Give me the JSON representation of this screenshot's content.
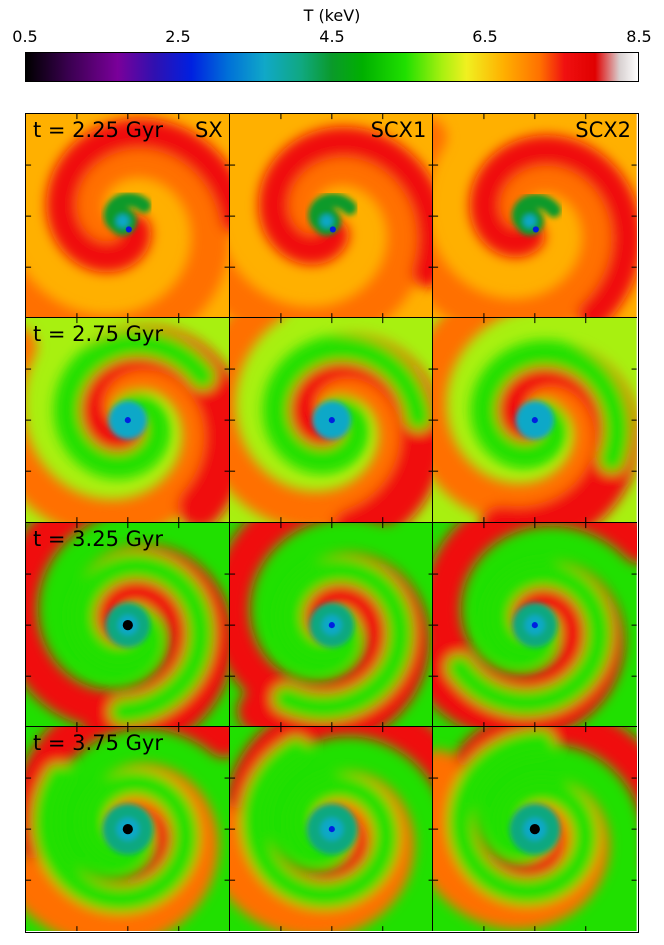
{
  "colorbar": {
    "title": "T (keV)",
    "ticks": [
      "0.5",
      "2.5",
      "4.5",
      "6.5",
      "8.5"
    ],
    "tick_values": [
      0.5,
      2.5,
      4.5,
      6.5,
      8.5
    ],
    "range": [
      0.5,
      8.5
    ],
    "colormap": [
      {
        "t": 0.0,
        "color": "#000000"
      },
      {
        "t": 0.07,
        "color": "#3a0050"
      },
      {
        "t": 0.15,
        "color": "#7a009a"
      },
      {
        "t": 0.21,
        "color": "#3010b0"
      },
      {
        "t": 0.27,
        "color": "#0020e0"
      },
      {
        "t": 0.33,
        "color": "#0070d8"
      },
      {
        "t": 0.39,
        "color": "#10a8c8"
      },
      {
        "t": 0.45,
        "color": "#10a880"
      },
      {
        "t": 0.5,
        "color": "#0a9a2a"
      },
      {
        "t": 0.55,
        "color": "#00b000"
      },
      {
        "t": 0.62,
        "color": "#20e000"
      },
      {
        "t": 0.68,
        "color": "#a8f010"
      },
      {
        "t": 0.72,
        "color": "#f0f020"
      },
      {
        "t": 0.78,
        "color": "#ffb000"
      },
      {
        "t": 0.84,
        "color": "#ff7000"
      },
      {
        "t": 0.88,
        "color": "#f01010"
      },
      {
        "t": 0.93,
        "color": "#e00000"
      },
      {
        "t": 0.97,
        "color": "#d8d0d0"
      },
      {
        "t": 1.0,
        "color": "#ffffff"
      }
    ]
  },
  "columns": [
    "SX",
    "SCX1",
    "SCX2"
  ],
  "rows": [
    "t = 2.25 Gyr",
    "t = 2.75 Gyr",
    "t = 3.25 Gyr",
    "t = 3.75 Gyr"
  ],
  "panel_style": {
    "background": [
      "#ffb000",
      "#a8f010",
      "#20e000",
      "#20e000"
    ],
    "outer": [
      "#ff7000",
      "#ff7000",
      "#f01010",
      "#f01010"
    ],
    "arm": [
      "#f01010",
      "#f01010",
      "#f01010",
      "#ff7000"
    ],
    "shell": [
      "#0a9a2a",
      "#10a8c8",
      "#10a880",
      "#10a880"
    ],
    "core": "#0020e0",
    "dark_core": "#000000"
  }
}
